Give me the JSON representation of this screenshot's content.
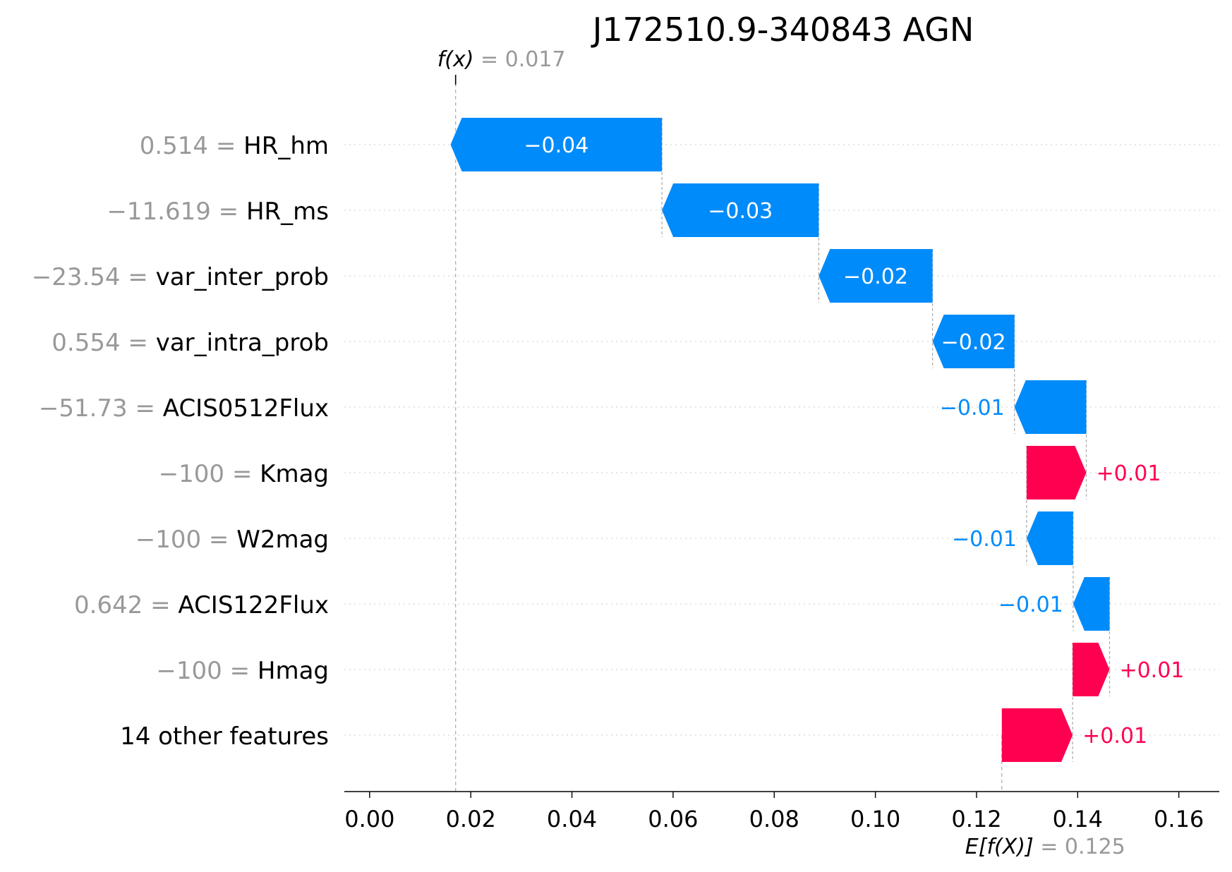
{
  "chart_data": {
    "type": "waterfall",
    "title": "J172510.9-340843 AGN",
    "base_value": 0.125,
    "output_value": 0.017,
    "base_label": {
      "expr": "E[f(X)]",
      "eq": " = 0.125"
    },
    "output_label": {
      "expr": "f(x)",
      "eq": " = 0.017"
    },
    "xlim": [
      -0.005,
      0.168
    ],
    "xticks": [
      0.0,
      0.02,
      0.04,
      0.06,
      0.08,
      0.1,
      0.12,
      0.14,
      0.16
    ],
    "xtick_labels": [
      "0.00",
      "0.02",
      "0.04",
      "0.06",
      "0.08",
      "0.10",
      "0.12",
      "0.14",
      "0.16"
    ],
    "grid": "horizontal dotted",
    "rows": [
      {
        "value_text": "0.514",
        "feature": "HR_hm",
        "contribution": -0.0418,
        "label": "−0.04"
      },
      {
        "value_text": "−11.619",
        "feature": "HR_ms",
        "contribution": -0.031,
        "label": "−0.03"
      },
      {
        "value_text": "−23.54",
        "feature": "var_inter_prob",
        "contribution": -0.0225,
        "label": "−0.02"
      },
      {
        "value_text": "0.554",
        "feature": "var_intra_prob",
        "contribution": -0.0162,
        "label": "−0.02"
      },
      {
        "value_text": "−51.73",
        "feature": "ACIS0512Flux",
        "contribution": -0.0142,
        "label": "−0.01"
      },
      {
        "value_text": "−100",
        "feature": "Kmag",
        "contribution": 0.0118,
        "label": "+0.01"
      },
      {
        "value_text": "−100",
        "feature": "W2mag",
        "contribution": -0.0092,
        "label": "−0.01"
      },
      {
        "value_text": "0.642",
        "feature": "ACIS122Flux",
        "contribution": -0.0072,
        "label": "−0.01"
      },
      {
        "value_text": "−100",
        "feature": "Hmag",
        "contribution": 0.0073,
        "label": "+0.01"
      },
      {
        "value_text": "",
        "feature": "14 other features",
        "contribution": 0.014,
        "label": "+0.01"
      }
    ],
    "colors": {
      "positive": "#ff0051",
      "negative": "#008bfb",
      "muted": "#999999",
      "text": "#000000"
    }
  }
}
